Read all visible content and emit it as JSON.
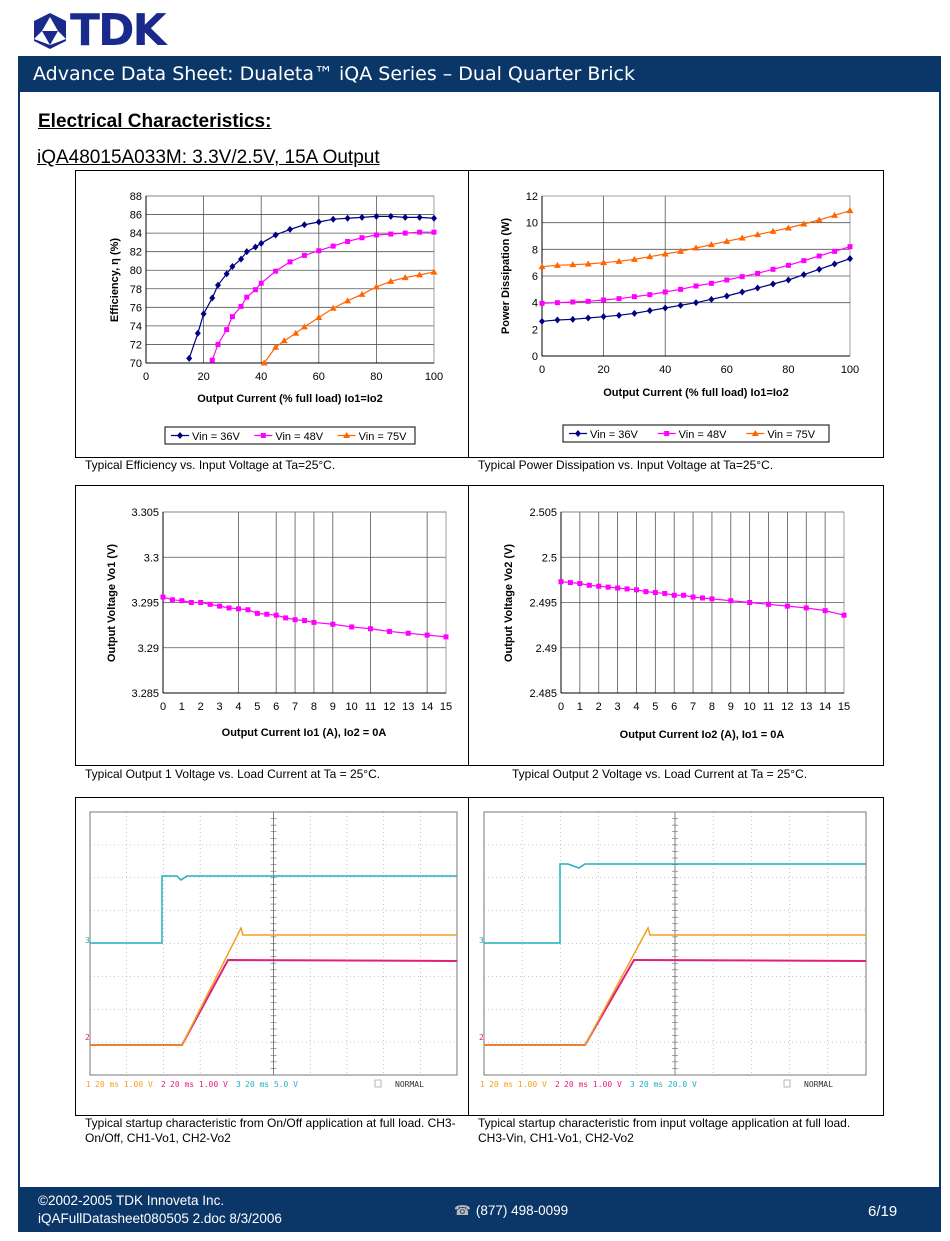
{
  "logo": {
    "text": "TDK"
  },
  "header": {
    "title": "Advance Data Sheet: Dualeta™ iQA Series – Dual Quarter Brick"
  },
  "section_title": "Electrical Characteristics:",
  "subtitle": "iQA48015A033M: 3.3V/2.5V, 15A Output",
  "captions": {
    "efficiency": "Typical Efficiency vs. Input Voltage at Ta=25°C.",
    "power": "Typical Power Dissipation vs. Input Voltage at Ta=25°C.",
    "vo1": "Typical Output 1 Voltage vs. Load Current at Ta = 25°C.",
    "vo2": "Typical Output 2 Voltage vs. Load Current at Ta = 25°C.",
    "scope1": "Typical startup characteristic from On/Off application at full load. CH3-On/Off, CH1-Vo1, CH2-Vo2",
    "scope2": "Typical startup characteristic from input voltage application at full load.  CH3-Vin, CH1-Vo1, CH2-Vo2"
  },
  "chart_data": [
    {
      "type": "line",
      "xlabel": "Output Current (% full load) Io1=Io2",
      "ylabel": "Efficiency, η (%)",
      "xlim": [
        0,
        100
      ],
      "ylim": [
        70,
        88
      ],
      "x_ticks": [
        "0",
        "20",
        "40",
        "60",
        "80",
        "100"
      ],
      "y_ticks": [
        "70",
        "72",
        "74",
        "76",
        "78",
        "80",
        "82",
        "84",
        "86",
        "88"
      ],
      "x_gridlines": [
        20,
        40,
        60,
        80
      ],
      "grid": true,
      "legend": "bottom",
      "series": [
        {
          "name": "Vin = 36V",
          "color": "#000080",
          "marker": "diamond",
          "x": [
            15,
            18,
            20,
            23,
            25,
            28,
            30,
            33,
            35,
            38,
            40,
            45,
            50,
            55,
            60,
            65,
            70,
            75,
            80,
            85,
            90,
            95,
            100
          ],
          "y": [
            70.5,
            73.2,
            75.3,
            77,
            78.4,
            79.6,
            80.4,
            81.2,
            82,
            82.5,
            82.9,
            83.8,
            84.4,
            84.9,
            85.2,
            85.5,
            85.6,
            85.7,
            85.8,
            85.8,
            85.7,
            85.7,
            85.6
          ]
        },
        {
          "name": "Vin = 48V",
          "color": "#ff00ff",
          "marker": "square",
          "x": [
            23,
            25,
            28,
            30,
            33,
            35,
            38,
            40,
            45,
            50,
            55,
            60,
            65,
            70,
            75,
            80,
            85,
            90,
            95,
            100
          ],
          "y": [
            70.3,
            72,
            73.6,
            75,
            76.1,
            77.1,
            77.9,
            78.6,
            79.9,
            80.9,
            81.6,
            82.1,
            82.6,
            83.1,
            83.5,
            83.8,
            83.9,
            84,
            84.1,
            84.1
          ]
        },
        {
          "name": "Vin = 75V",
          "color": "#ff6600",
          "marker": "triangle",
          "x": [
            41,
            45,
            48,
            52,
            55,
            60,
            65,
            70,
            75,
            80,
            85,
            90,
            95,
            100
          ],
          "y": [
            70,
            71.7,
            72.4,
            73.2,
            73.9,
            74.9,
            75.9,
            76.7,
            77.4,
            78.2,
            78.8,
            79.2,
            79.5,
            79.8
          ]
        }
      ]
    },
    {
      "type": "line",
      "xlabel": "Output Current (% full load) Io1=Io2",
      "ylabel": "Power Dissipation (W)",
      "xlim": [
        0,
        100
      ],
      "ylim": [
        0,
        12
      ],
      "x_ticks": [
        "0",
        "20",
        "40",
        "60",
        "80",
        "100"
      ],
      "y_ticks": [
        "0",
        "2",
        "4",
        "6",
        "8",
        "10",
        "12"
      ],
      "x_gridlines": [
        20,
        40
      ],
      "y_gridlines": [
        4,
        6,
        8,
        10
      ],
      "grid": true,
      "legend": "bottom",
      "series": [
        {
          "name": "Vin = 36V",
          "color": "#000080",
          "marker": "diamond",
          "x": [
            0,
            5,
            10,
            15,
            20,
            25,
            30,
            35,
            40,
            45,
            50,
            55,
            60,
            65,
            70,
            75,
            80,
            85,
            90,
            95,
            100
          ],
          "y": [
            2.6,
            2.7,
            2.75,
            2.85,
            2.95,
            3.05,
            3.2,
            3.4,
            3.6,
            3.8,
            4.0,
            4.25,
            4.5,
            4.8,
            5.1,
            5.4,
            5.7,
            6.1,
            6.5,
            6.9,
            7.3
          ]
        },
        {
          "name": "Vin = 48V",
          "color": "#ff00ff",
          "marker": "square",
          "x": [
            0,
            5,
            10,
            15,
            20,
            25,
            30,
            35,
            40,
            45,
            50,
            55,
            60,
            65,
            70,
            75,
            80,
            85,
            90,
            95,
            100
          ],
          "y": [
            3.95,
            4.0,
            4.05,
            4.1,
            4.2,
            4.3,
            4.45,
            4.6,
            4.8,
            5.0,
            5.25,
            5.45,
            5.7,
            5.95,
            6.2,
            6.5,
            6.8,
            7.15,
            7.5,
            7.85,
            8.2
          ]
        },
        {
          "name": "Vin = 75V",
          "color": "#ff6600",
          "marker": "triangle",
          "x": [
            0,
            5,
            10,
            15,
            20,
            25,
            30,
            35,
            40,
            45,
            50,
            55,
            60,
            65,
            70,
            75,
            80,
            85,
            90,
            95,
            100
          ],
          "y": [
            6.7,
            6.8,
            6.85,
            6.9,
            7.0,
            7.1,
            7.25,
            7.45,
            7.65,
            7.85,
            8.1,
            8.35,
            8.6,
            8.85,
            9.1,
            9.35,
            9.6,
            9.9,
            10.2,
            10.55,
            10.9
          ]
        }
      ]
    },
    {
      "type": "line",
      "xlabel": "Output Current Io1 (A), Io2 = 0A",
      "ylabel": "Output Voltage Vo1 (V)",
      "xlim": [
        0,
        15
      ],
      "ylim": [
        3.285,
        3.305
      ],
      "x_ticks": [
        "0",
        "1",
        "2",
        "3",
        "4",
        "5",
        "6",
        "7",
        "8",
        "9",
        "10",
        "11",
        "12",
        "13",
        "14",
        "15"
      ],
      "y_ticks": [
        "3.285",
        "3.29",
        "3.295",
        "3.3",
        "3.305"
      ],
      "x_gridlines": [
        4,
        6,
        7,
        8,
        9,
        11,
        14
      ],
      "grid": true,
      "legend": "none",
      "series": [
        {
          "color": "#ff00ff",
          "marker": "square",
          "x": [
            0,
            0.5,
            1,
            1.5,
            2,
            2.5,
            3,
            3.5,
            4,
            4.5,
            5,
            5.5,
            6,
            6.5,
            7,
            7.5,
            8,
            9,
            10,
            11,
            12,
            13,
            14,
            15
          ],
          "y": [
            3.2956,
            3.2953,
            3.2952,
            3.295,
            3.295,
            3.2948,
            3.2946,
            3.2944,
            3.2943,
            3.2942,
            3.2938,
            3.2937,
            3.2936,
            3.2933,
            3.2931,
            3.293,
            3.2928,
            3.2926,
            3.2923,
            3.2921,
            3.2918,
            3.2916,
            3.2914,
            3.2912
          ]
        }
      ]
    },
    {
      "type": "line",
      "xlabel": "Output Current Io2 (A), Io1 = 0A",
      "ylabel": "Output Voltage Vo2 (V)",
      "xlim": [
        0,
        15
      ],
      "ylim": [
        2.485,
        2.505
      ],
      "x_ticks": [
        "0",
        "1",
        "2",
        "3",
        "4",
        "5",
        "6",
        "7",
        "8",
        "9",
        "10",
        "11",
        "12",
        "13",
        "14",
        "15"
      ],
      "y_ticks": [
        "2.485",
        "2.49",
        "2.495",
        "2.5",
        "2.505"
      ],
      "x_gridlines": [
        1,
        2,
        3,
        4,
        5,
        6,
        7,
        8,
        9,
        10,
        11,
        12,
        13,
        14
      ],
      "grid": true,
      "legend": "none",
      "series": [
        {
          "color": "#ff00ff",
          "marker": "square",
          "x": [
            0,
            0.5,
            1,
            1.5,
            2,
            2.5,
            3,
            3.5,
            4,
            4.5,
            5,
            5.5,
            6,
            6.5,
            7,
            7.5,
            8,
            9,
            10,
            11,
            12,
            13,
            14,
            15
          ],
          "y": [
            2.4973,
            2.4972,
            2.4971,
            2.4969,
            2.4968,
            2.4967,
            2.4966,
            2.4965,
            2.4964,
            2.4962,
            2.4961,
            2.496,
            2.4958,
            2.4958,
            2.4956,
            2.4955,
            2.4954,
            2.4952,
            2.495,
            2.4948,
            2.4946,
            2.4944,
            2.4941,
            2.4936
          ]
        }
      ]
    }
  ],
  "scopes": [
    {
      "legend": [
        {
          "ch": "1",
          "text": "20 ms 1.00 V",
          "color": "#f0a020"
        },
        {
          "ch": "2",
          "text": "20 ms 1.00 V",
          "color": "#e0207a"
        },
        {
          "ch": "3",
          "text": "20 ms 5.0 V",
          "color": "#20b0c0"
        }
      ],
      "mode": "NORMAL"
    },
    {
      "legend": [
        {
          "ch": "1",
          "text": "20 ms 1.00 V",
          "color": "#f0a020"
        },
        {
          "ch": "2",
          "text": "20 ms 1.00 V",
          "color": "#e0207a"
        },
        {
          "ch": "3",
          "text": "20 ms 20.0 V",
          "color": "#20b0c0"
        }
      ],
      "mode": "NORMAL"
    }
  ],
  "footer": {
    "copyright": "©2002-2005  TDK Innoveta Inc.",
    "file": "iQAFullDatasheet080505  2.doc 8/3/2006",
    "phone": "(877) 498-0099",
    "page": "6/19"
  }
}
